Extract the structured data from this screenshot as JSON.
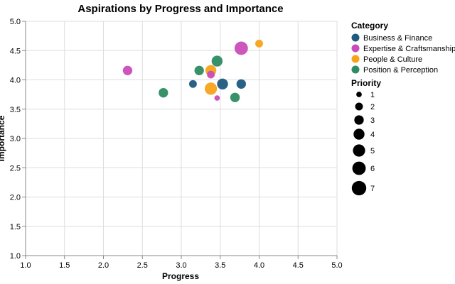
{
  "chart_data": {
    "type": "scatter",
    "title": "Aspirations by Progress and Importance",
    "xlabel": "Progress",
    "ylabel": "Importance",
    "xlim": [
      1.0,
      5.0
    ],
    "ylim": [
      1.0,
      5.0
    ],
    "x_ticks": [
      "1.0",
      "1.5",
      "2.0",
      "2.5",
      "3.0",
      "3.5",
      "4.0",
      "4.5",
      "5.0"
    ],
    "y_ticks": [
      "1.0",
      "1.5",
      "2.0",
      "2.5",
      "3.0",
      "3.5",
      "4.0",
      "4.5",
      "5.0"
    ],
    "grid": true,
    "legend_position": "right",
    "color_legend": {
      "title": "Category",
      "items": [
        {
          "label": "Business & Finance",
          "color": "#1f5a7f"
        },
        {
          "label": "Expertise & Craftsmanship",
          "color": "#c94db8"
        },
        {
          "label": "People & Culture",
          "color": "#f5a31a"
        },
        {
          "label": "Position & Perception",
          "color": "#2e8b62"
        }
      ]
    },
    "size_legend": {
      "title": "Priority",
      "items": [
        "1",
        "2",
        "3",
        "4",
        "5",
        "6",
        "7"
      ]
    },
    "series": [
      {
        "name": "Business & Finance",
        "points": [
          {
            "x": 3.15,
            "y": 3.93,
            "priority": 2
          },
          {
            "x": 3.53,
            "y": 3.93,
            "priority": 4
          },
          {
            "x": 3.77,
            "y": 3.93,
            "priority": 3
          }
        ]
      },
      {
        "name": "Expertise & Craftsmanship",
        "points": [
          {
            "x": 2.31,
            "y": 4.16,
            "priority": 3
          },
          {
            "x": 3.38,
            "y": 4.09,
            "priority": 2
          },
          {
            "x": 3.46,
            "y": 3.69,
            "priority": 1
          },
          {
            "x": 3.77,
            "y": 4.54,
            "priority": 6
          }
        ]
      },
      {
        "name": "People & Culture",
        "points": [
          {
            "x": 3.38,
            "y": 4.16,
            "priority": 4
          },
          {
            "x": 3.38,
            "y": 3.85,
            "priority": 5
          },
          {
            "x": 4.0,
            "y": 4.62,
            "priority": 2
          }
        ]
      },
      {
        "name": "Position & Perception",
        "points": [
          {
            "x": 2.77,
            "y": 3.78,
            "priority": 3
          },
          {
            "x": 3.23,
            "y": 4.16,
            "priority": 3
          },
          {
            "x": 3.46,
            "y": 4.32,
            "priority": 4
          },
          {
            "x": 3.69,
            "y": 3.7,
            "priority": 3
          }
        ]
      }
    ]
  }
}
